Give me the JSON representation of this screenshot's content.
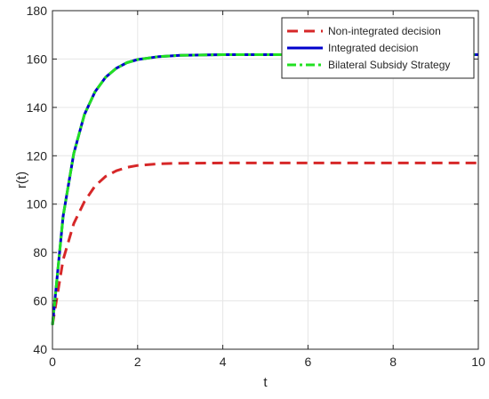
{
  "chart_data": {
    "type": "line",
    "xlabel": "t",
    "ylabel": "r(t)",
    "xlim": [
      0,
      10
    ],
    "ylim": [
      40,
      180
    ],
    "xticks": [
      0,
      2,
      4,
      6,
      8,
      10
    ],
    "yticks": [
      40,
      60,
      80,
      100,
      120,
      140,
      160,
      180
    ],
    "grid": true,
    "legend_position": "top-right",
    "series": [
      {
        "name": "Non-integrated decision",
        "color": "#d62728",
        "style": "dashed",
        "x": [
          0,
          0.25,
          0.5,
          0.75,
          1,
          1.25,
          1.5,
          1.75,
          2,
          2.5,
          3,
          4,
          5,
          6,
          7,
          8,
          9,
          10
        ],
        "y": [
          50,
          77,
          92,
          101,
          107.5,
          111.5,
          113.8,
          115.2,
          116.0,
          116.7,
          116.9,
          117,
          117,
          117,
          117,
          117,
          117,
          117
        ]
      },
      {
        "name": "Integrated decision",
        "color": "#0000cc",
        "style": "solid",
        "x": [
          0,
          0.25,
          0.5,
          0.75,
          1,
          1.25,
          1.5,
          1.75,
          2,
          2.5,
          3,
          4,
          5,
          6,
          7,
          8,
          9,
          10
        ],
        "y": [
          50,
          95,
          121,
          137,
          146.5,
          152.5,
          156.2,
          158.5,
          159.8,
          161.0,
          161.5,
          161.8,
          161.8,
          161.8,
          161.8,
          161.8,
          161.8,
          161.8
        ]
      },
      {
        "name": "Bilateral Subsidy Strategy",
        "color": "#22e022",
        "style": "dashdot",
        "x": [
          0,
          0.25,
          0.5,
          0.75,
          1,
          1.25,
          1.5,
          1.75,
          2,
          2.5,
          3,
          4,
          5,
          6,
          7,
          8,
          9,
          10
        ],
        "y": [
          50,
          95,
          121,
          137,
          146.5,
          152.5,
          156.2,
          158.5,
          159.8,
          161.0,
          161.5,
          161.8,
          161.8,
          161.8,
          161.8,
          161.8,
          161.8,
          161.8
        ]
      }
    ]
  }
}
